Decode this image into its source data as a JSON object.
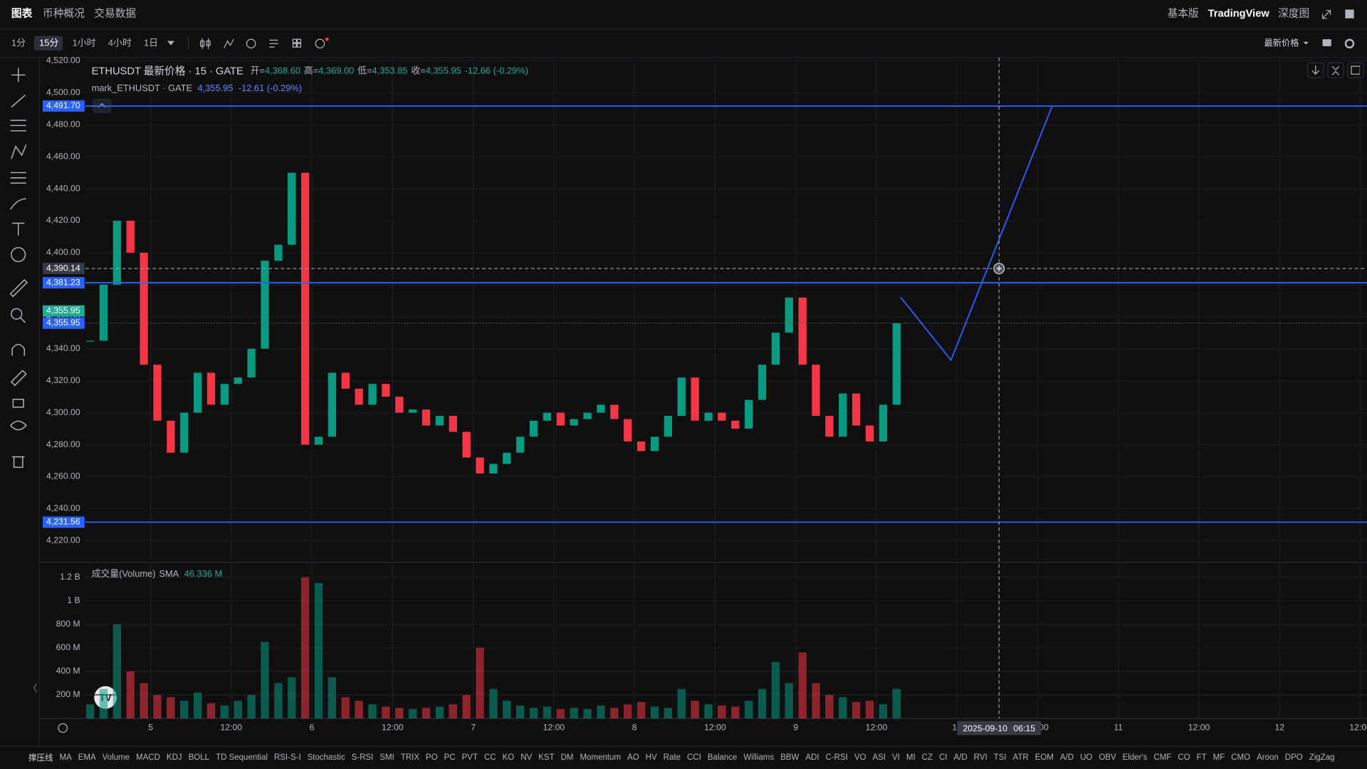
{
  "header": {
    "tabs": [
      "图表",
      "币种概况",
      "交易数据"
    ],
    "right": [
      "基本版",
      "TradingView",
      "深度图"
    ]
  },
  "toolbar": {
    "intervals": [
      "1分",
      "15分",
      "1小时",
      "4小时",
      "1日"
    ],
    "price_source": "最新价格"
  },
  "chart_data": {
    "type": "candlestick",
    "title": "ETHUSDT 最新价格 · 15 · GATE",
    "ohlc": [
      {
        "label": "开=",
        "text": "4,368.60"
      },
      {
        "label": "高=",
        "text": "4,369.00"
      },
      {
        "label": "低=",
        "text": "4,353.85"
      },
      {
        "label": "收=",
        "text": "4,355.95"
      }
    ],
    "change": "-12.66 (-0.29%)",
    "mark_series": {
      "name": "mark_ETHUSDT · GATE",
      "price": "4,355.95",
      "change": "-12.61 (-0.29%)"
    },
    "up_color": "#089981",
    "down_color": "#f23645",
    "line_color": "#2962ff",
    "x": [
      -9,
      -7,
      -5,
      -3,
      -1,
      1,
      3,
      5,
      7,
      9,
      11,
      13,
      15,
      17,
      19,
      21,
      23,
      25,
      27,
      29,
      31,
      33,
      35,
      37,
      39,
      41,
      43,
      45,
      47,
      49,
      51,
      53,
      55,
      57,
      59,
      61,
      63,
      65,
      67,
      69,
      71,
      73,
      75,
      77,
      79,
      81,
      83,
      85,
      87,
      89,
      91,
      93,
      95,
      97,
      99,
      101,
      103,
      105,
      107,
      109,
      111
    ],
    "closes": [
      4345,
      4380,
      4420,
      4400,
      4330,
      4295,
      4275,
      4300,
      4325,
      4305,
      4318,
      4322,
      4340,
      4395,
      4405,
      4450,
      4280,
      4285,
      4325,
      4315,
      4305,
      4318,
      4310,
      4300,
      4302,
      4292,
      4298,
      4288,
      4272,
      4262,
      4268,
      4275,
      4285,
      4295,
      4300,
      4292,
      4296,
      4300,
      4305,
      4296,
      4282,
      4276,
      4285,
      4298,
      4322,
      4295,
      4300,
      4295,
      4290,
      4308,
      4330,
      4350,
      4372,
      4330,
      4298,
      4285,
      4312,
      4292,
      4282,
      4305,
      4355.95
    ],
    "xlim": [
      -9.7,
      181
    ],
    "xticks": [
      {
        "value": 0,
        "label": "5"
      },
      {
        "value": 12,
        "label": "12:00"
      },
      {
        "value": 24,
        "label": "6"
      },
      {
        "value": 36,
        "label": "12:00"
      },
      {
        "value": 48,
        "label": "7"
      },
      {
        "value": 60,
        "label": "12:00"
      },
      {
        "value": 72,
        "label": "8"
      },
      {
        "value": 84,
        "label": "12:00"
      },
      {
        "value": 96,
        "label": "9"
      },
      {
        "value": 108,
        "label": "12:00"
      },
      {
        "value": 120,
        "label": "10"
      },
      {
        "value": 132,
        "label": "12:00"
      },
      {
        "value": 144,
        "label": "11"
      },
      {
        "value": 156,
        "label": "12:00"
      },
      {
        "value": 168,
        "label": "12"
      },
      {
        "value": 180,
        "label": "12:00"
      }
    ],
    "ylim": [
      4207,
      4522
    ],
    "yticks": [
      {
        "value": 4220,
        "label": "4,220.00"
      },
      {
        "value": 4240,
        "label": "4,240.00"
      },
      {
        "value": 4260,
        "label": "4,260.00"
      },
      {
        "value": 4280,
        "label": "4,280.00"
      },
      {
        "value": 4300,
        "label": "4,300.00"
      },
      {
        "value": 4320,
        "label": "4,320.00"
      },
      {
        "value": 4340,
        "label": "4,340.00"
      },
      {
        "value": 4360,
        "label": "4,360.00"
      },
      {
        "value": 4380,
        "label": "4,380.00"
      },
      {
        "value": 4400,
        "label": "4,400.00"
      },
      {
        "value": 4420,
        "label": "4,420.00"
      },
      {
        "value": 4440,
        "label": "4,440.00"
      },
      {
        "value": 4460,
        "label": "4,460.00"
      },
      {
        "value": 4480,
        "label": "4,480.00"
      },
      {
        "value": 4500,
        "label": "4,500.00"
      },
      {
        "value": 4520,
        "label": "4,520.00"
      }
    ],
    "hlines": [
      {
        "value": 4491.7,
        "label": "4,491.70"
      },
      {
        "value": 4381.23,
        "label": "4,381.23"
      },
      {
        "value": 4231.56,
        "label": "4,231.56"
      }
    ],
    "last_price": {
      "value": 4355.95,
      "label": "4,355.95"
    },
    "mark_price": {
      "value": 4355.95,
      "label": "4,355.95"
    },
    "crosshair": {
      "x": 126.25,
      "date_label": "2025-09-10",
      "time_label": "06:15",
      "y": 4390.14,
      "y_label": "4,390.14"
    },
    "drawing": {
      "x": [
        111.6,
        119.1,
        134.1
      ],
      "y": [
        4372.2,
        4332.9,
        4491.1
      ]
    },
    "volume": {
      "name": "成交量(Volume)",
      "sma_label": "SMA",
      "sma": "46.336 M",
      "values": [
        120000000,
        250000000,
        800000000,
        400000000,
        300000000,
        200000000,
        180000000,
        150000000,
        220000000,
        130000000,
        110000000,
        150000000,
        200000000,
        650000000,
        300000000,
        350000000,
        1200000000,
        1150000000,
        350000000,
        180000000,
        150000000,
        120000000,
        100000000,
        90000000,
        80000000,
        90000000,
        100000000,
        120000000,
        200000000,
        600000000,
        250000000,
        150000000,
        110000000,
        90000000,
        100000000,
        80000000,
        90000000,
        80000000,
        110000000,
        90000000,
        120000000,
        140000000,
        100000000,
        90000000,
        250000000,
        150000000,
        120000000,
        110000000,
        100000000,
        150000000,
        250000000,
        480000000,
        300000000,
        560000000,
        300000000,
        200000000,
        180000000,
        140000000,
        150000000,
        120000000,
        250000000
      ],
      "ylim": [
        0,
        1326000000
      ],
      "yticks": [
        {
          "value": 200000000,
          "label": "200 M"
        },
        {
          "value": 400000000,
          "label": "400 M"
        },
        {
          "value": 600000000,
          "label": "600 M"
        },
        {
          "value": 800000000,
          "label": "800 M"
        },
        {
          "value": 1000000000,
          "label": "1 B"
        },
        {
          "value": 1200000000,
          "label": "1.2 B"
        }
      ]
    }
  },
  "indicators": {
    "title": "撑压线",
    "items": [
      "MA",
      "EMA",
      "Volume",
      "MACD",
      "KDJ",
      "BOLL",
      "TD Sequential",
      "RSI-S-I",
      "Stochastic",
      "S-RSI",
      "SMI",
      "TRIX",
      "PO",
      "PC",
      "PVT",
      "CC",
      "KO",
      "NV",
      "KST",
      "DM",
      "Momentum",
      "AO",
      "HV",
      "Rate",
      "CCI",
      "Balance",
      "Williams",
      "BBW",
      "ADI",
      "C-RSI",
      "VO",
      "ASI",
      "VI",
      "MI",
      "CZ",
      "CI",
      "A/D",
      "RVI",
      "TSI",
      "ATR",
      "EOM",
      "A/D",
      "UO",
      "OBV",
      "Elder's",
      "CMF",
      "CO",
      "FT",
      "MF",
      "CMO",
      "Aroon",
      "DPO",
      "ZigZag"
    ]
  }
}
